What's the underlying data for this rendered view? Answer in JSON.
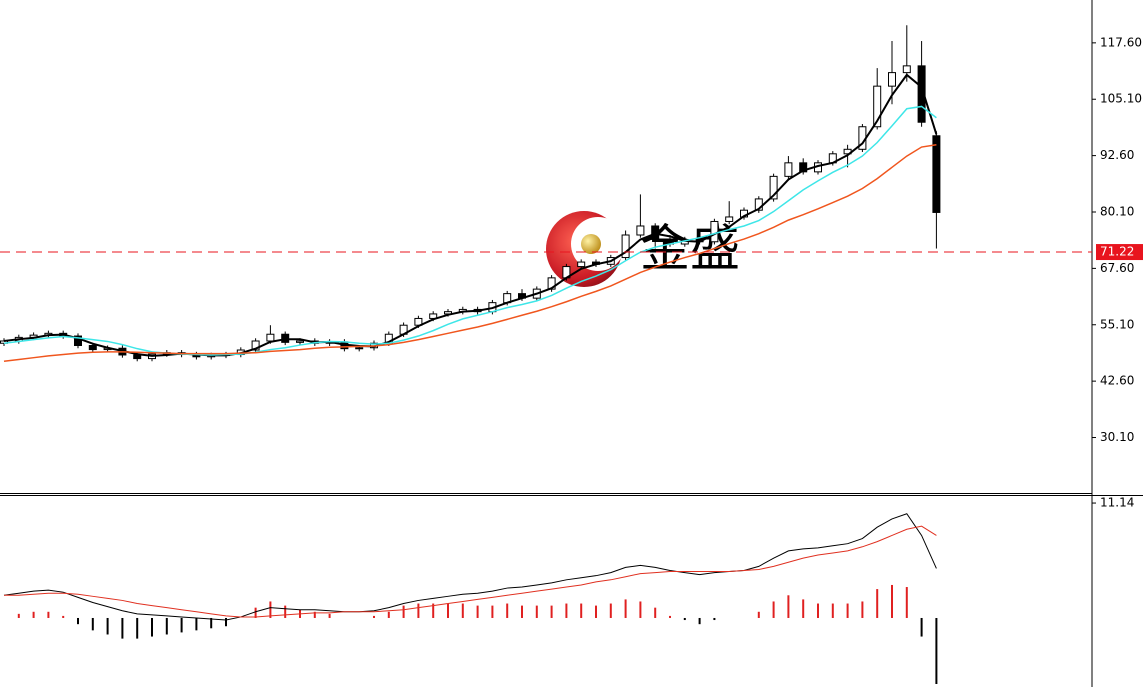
{
  "chart_data": [
    {
      "type": "candlestick",
      "watermark": "金盛",
      "ylim": [
        17.8,
        127.1
      ],
      "yticks": [
        {
          "value": 117.6,
          "label": "117.60"
        },
        {
          "value": 105.1,
          "label": "105.10"
        },
        {
          "value": 92.6,
          "label": "92.60"
        },
        {
          "value": 80.1,
          "label": "80.10"
        },
        {
          "value": 67.6,
          "label": "67.60"
        },
        {
          "value": 55.1,
          "label": "55.10"
        },
        {
          "value": 42.6,
          "label": "42.60"
        },
        {
          "value": 30.1,
          "label": "30.10"
        }
      ],
      "last_price": 71.22,
      "last_price_color": "#e8141e",
      "up_color": "#ffffff",
      "down_color": "#000000",
      "open": [
        51.0,
        51.5,
        52.3,
        52.8,
        53.2,
        52.6,
        50.5,
        49.6,
        49.9,
        48.4,
        47.6,
        48.6,
        48.9,
        48.5,
        48.0,
        48.3,
        48.5,
        49.5,
        51.5,
        53.0,
        51.2,
        51.5,
        51.0,
        51.3,
        49.8,
        50.0,
        51.0,
        53.0,
        55.0,
        56.5,
        57.5,
        58.0,
        58.5,
        58.0,
        60.0,
        62.0,
        61.0,
        63.0,
        65.5,
        68.0,
        69.0,
        68.5,
        70.0,
        75.0,
        77.0,
        74.0,
        73.0,
        74.0,
        73.5,
        78.0,
        79.0,
        80.5,
        83.0,
        88.0,
        91.0,
        89.0,
        91.0,
        93.0,
        94.0,
        99.0,
        108.0,
        111.0,
        112.5,
        97.0
      ],
      "high": [
        52.1,
        52.9,
        53.4,
        53.8,
        53.8,
        53.2,
        51.1,
        50.5,
        50.5,
        49.0,
        49.2,
        49.5,
        49.5,
        49.1,
        48.9,
        49.1,
        50.1,
        52.1,
        55.0,
        53.6,
        52.1,
        52.1,
        51.9,
        51.9,
        50.6,
        51.6,
        53.6,
        55.6,
        57.1,
        58.1,
        58.6,
        59.1,
        59.1,
        60.6,
        62.6,
        63.0,
        63.6,
        66.1,
        68.6,
        69.6,
        69.6,
        70.6,
        76.0,
        84.0,
        77.6,
        75.0,
        74.6,
        75.0,
        78.6,
        82.5,
        81.1,
        83.6,
        88.6,
        92.5,
        92.0,
        91.6,
        93.6,
        95.0,
        99.6,
        112.0,
        118.0,
        121.5,
        118.0,
        98.0
      ],
      "low": [
        50.4,
        50.9,
        51.7,
        52.2,
        52.0,
        49.9,
        49.0,
        49.0,
        47.8,
        47.0,
        47.0,
        48.0,
        47.9,
        47.4,
        47.4,
        47.7,
        47.9,
        48.9,
        50.9,
        50.6,
        50.6,
        50.4,
        50.4,
        49.2,
        49.2,
        49.4,
        50.4,
        52.4,
        54.4,
        55.9,
        56.9,
        57.4,
        57.4,
        57.4,
        59.4,
        60.4,
        60.4,
        62.4,
        64.9,
        67.4,
        67.9,
        67.9,
        69.4,
        74.4,
        72.0,
        72.4,
        72.4,
        72.9,
        72.9,
        77.4,
        78.4,
        79.9,
        82.4,
        87.4,
        88.4,
        88.4,
        90.4,
        90.0,
        93.4,
        98.4,
        104.0,
        109.0,
        99.0,
        72.0
      ],
      "close": [
        51.5,
        52.3,
        52.8,
        53.2,
        52.6,
        50.5,
        49.6,
        49.9,
        48.4,
        47.6,
        48.6,
        48.9,
        48.5,
        48.0,
        48.3,
        48.5,
        49.5,
        51.5,
        53.0,
        51.2,
        51.5,
        51.0,
        51.3,
        49.8,
        50.0,
        51.0,
        53.0,
        55.0,
        56.5,
        57.5,
        58.0,
        58.5,
        58.0,
        60.0,
        62.0,
        61.0,
        63.0,
        65.5,
        68.0,
        69.0,
        68.5,
        70.0,
        75.0,
        77.0,
        74.0,
        73.0,
        74.0,
        73.5,
        78.0,
        79.0,
        80.5,
        83.0,
        88.0,
        91.0,
        89.0,
        91.0,
        93.0,
        94.0,
        99.0,
        108.0,
        111.0,
        112.5,
        100.0,
        80.0
      ],
      "ma_lines": [
        {
          "color": "#000000",
          "values": [
            51.5,
            51.9,
            52.2,
            52.8,
            52.9,
            52.1,
            50.9,
            50.0,
            49.3,
            48.6,
            48.2,
            48.4,
            48.7,
            48.5,
            48.3,
            48.3,
            48.8,
            49.8,
            51.3,
            51.9,
            51.9,
            51.2,
            51.3,
            50.7,
            50.4,
            50.3,
            51.3,
            53.0,
            54.8,
            56.3,
            57.3,
            58.0,
            58.2,
            58.8,
            60.0,
            61.0,
            62.0,
            63.2,
            65.5,
            67.5,
            68.5,
            69.2,
            71.2,
            74.0,
            75.3,
            74.7,
            73.7,
            73.5,
            75.2,
            76.8,
            79.2,
            80.8,
            83.8,
            87.3,
            89.3,
            90.3,
            91.0,
            92.7,
            95.3,
            100.3,
            106.0,
            110.5,
            107.8,
            97.3
          ]
        },
        {
          "color": "#3ee6e8",
          "values": [
            51.0,
            51.4,
            51.8,
            52.2,
            52.5,
            52.2,
            51.8,
            51.4,
            50.7,
            49.8,
            49.1,
            48.8,
            48.6,
            48.5,
            48.4,
            48.5,
            48.6,
            49.0,
            49.6,
            50.0,
            50.6,
            51.1,
            51.4,
            51.3,
            51.0,
            50.8,
            51.0,
            51.7,
            52.6,
            53.8,
            55.2,
            56.4,
            57.2,
            58.0,
            58.9,
            59.6,
            60.4,
            61.6,
            63.2,
            64.7,
            65.9,
            67.3,
            69.3,
            71.2,
            72.3,
            73.0,
            73.7,
            74.4,
            75.3,
            76.2,
            77.0,
            78.2,
            80.2,
            82.6,
            85.0,
            87.0,
            88.9,
            90.5,
            92.5,
            95.5,
            99.2,
            103.0,
            103.5,
            101.0
          ]
        },
        {
          "color": "#f0561e",
          "values": [
            47.0,
            47.4,
            47.8,
            48.2,
            48.5,
            48.8,
            49.0,
            49.1,
            49.1,
            49.0,
            48.9,
            48.8,
            48.7,
            48.7,
            48.7,
            48.7,
            48.8,
            48.9,
            49.2,
            49.4,
            49.6,
            49.9,
            50.1,
            50.2,
            50.3,
            50.4,
            50.7,
            51.2,
            51.8,
            52.5,
            53.2,
            53.9,
            54.6,
            55.4,
            56.3,
            57.2,
            58.1,
            59.1,
            60.2,
            61.4,
            62.5,
            63.7,
            65.2,
            66.7,
            67.9,
            69.0,
            70.0,
            70.9,
            72.0,
            73.1,
            74.1,
            75.3,
            76.7,
            78.3,
            79.5,
            80.8,
            82.2,
            83.6,
            85.3,
            87.5,
            90.0,
            92.5,
            94.5,
            95.0
          ]
        }
      ]
    },
    {
      "type": "macd",
      "ylim": [
        -6.69,
        11.92
      ],
      "yticks": [
        11.14
      ],
      "pos_color": "#e02020",
      "neg_color": "#000000",
      "lines": [
        {
          "color": "#000000",
          "values": [
            2.2,
            2.4,
            2.6,
            2.7,
            2.5,
            2.0,
            1.5,
            1.1,
            0.7,
            0.4,
            0.3,
            0.2,
            0.1,
            0.0,
            -0.1,
            -0.2,
            0.1,
            0.6,
            1.0,
            0.9,
            0.8,
            0.8,
            0.7,
            0.6,
            0.6,
            0.7,
            1.0,
            1.4,
            1.7,
            1.9,
            2.1,
            2.3,
            2.4,
            2.6,
            2.9,
            3.0,
            3.2,
            3.4,
            3.7,
            3.9,
            4.1,
            4.4,
            4.9,
            5.1,
            4.9,
            4.6,
            4.4,
            4.2,
            4.4,
            4.5,
            4.6,
            5.0,
            5.8,
            6.5,
            6.7,
            6.8,
            7.0,
            7.2,
            7.7,
            8.8,
            9.6,
            10.1,
            8.0,
            4.8
          ]
        },
        {
          "color": "#e03020",
          "values": [
            2.2,
            2.2,
            2.3,
            2.4,
            2.4,
            2.3,
            2.1,
            1.9,
            1.7,
            1.4,
            1.2,
            1.0,
            0.8,
            0.6,
            0.4,
            0.2,
            0.1,
            0.1,
            0.2,
            0.3,
            0.4,
            0.5,
            0.5,
            0.6,
            0.6,
            0.6,
            0.7,
            0.8,
            1.0,
            1.2,
            1.4,
            1.6,
            1.8,
            2.0,
            2.2,
            2.4,
            2.6,
            2.8,
            3.0,
            3.2,
            3.5,
            3.7,
            4.0,
            4.3,
            4.4,
            4.5,
            4.5,
            4.5,
            4.5,
            4.5,
            4.6,
            4.7,
            5.0,
            5.4,
            5.8,
            6.1,
            6.3,
            6.5,
            6.9,
            7.4,
            8.0,
            8.6,
            8.9,
            8.0
          ]
        }
      ],
      "histogram": [
        0,
        0.4,
        0.6,
        0.6,
        0.2,
        -0.6,
        -1.2,
        -1.6,
        -2.0,
        -2.0,
        -1.8,
        -1.6,
        -1.4,
        -1.2,
        -1.0,
        -0.8,
        0,
        1.0,
        1.6,
        1.2,
        0.8,
        0.6,
        0.4,
        0,
        0,
        0.2,
        0.6,
        1.2,
        1.4,
        1.4,
        1.4,
        1.4,
        1.2,
        1.2,
        1.4,
        1.2,
        1.2,
        1.2,
        1.4,
        1.4,
        1.2,
        1.4,
        1.8,
        1.6,
        1.0,
        0.2,
        -0.2,
        -0.6,
        -0.2,
        0,
        0,
        0.6,
        1.6,
        2.2,
        1.8,
        1.4,
        1.4,
        1.4,
        1.6,
        2.8,
        3.2,
        3.0,
        -1.8,
        -6.4
      ]
    }
  ]
}
